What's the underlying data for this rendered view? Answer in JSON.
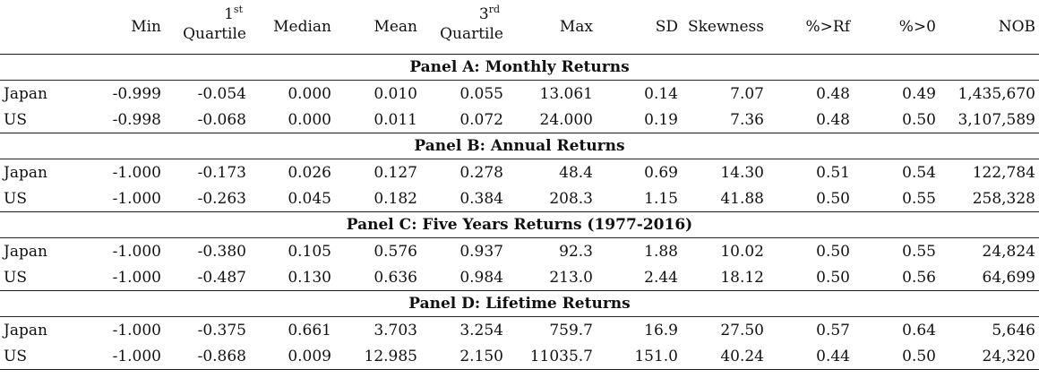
{
  "header": {
    "columns": [
      {
        "label": "Min"
      },
      {
        "sup_base": "1",
        "sup": "st",
        "label": "Quartile"
      },
      {
        "label": "Median"
      },
      {
        "label": "Mean"
      },
      {
        "sup_base": "3",
        "sup": "rd",
        "label": "Quartile"
      },
      {
        "label": "Max"
      },
      {
        "label": "SD"
      },
      {
        "label": "Skewness"
      },
      {
        "label": "%>Rf"
      },
      {
        "label": "%>0"
      },
      {
        "label": "NOB"
      }
    ]
  },
  "panels": [
    {
      "title": "Panel A: Monthly Returns",
      "rows": [
        {
          "name": "Japan",
          "values": [
            "-0.999",
            "-0.054",
            "0.000",
            "0.010",
            "0.055",
            "13.061",
            "0.14",
            "7.07",
            "0.48",
            "0.49",
            "1,435,670"
          ]
        },
        {
          "name": "US",
          "values": [
            "-0.998",
            "-0.068",
            "0.000",
            "0.011",
            "0.072",
            "24.000",
            "0.19",
            "7.36",
            "0.48",
            "0.50",
            "3,107,589"
          ]
        }
      ]
    },
    {
      "title": "Panel B: Annual Returns",
      "rows": [
        {
          "name": "Japan",
          "values": [
            "-1.000",
            "-0.173",
            "0.026",
            "0.127",
            "0.278",
            "48.4",
            "0.69",
            "14.30",
            "0.51",
            "0.54",
            "122,784"
          ]
        },
        {
          "name": "US",
          "values": [
            "-1.000",
            "-0.263",
            "0.045",
            "0.182",
            "0.384",
            "208.3",
            "1.15",
            "41.88",
            "0.50",
            "0.55",
            "258,328"
          ]
        }
      ]
    },
    {
      "title": "Panel C: Five Years Returns (1977-2016)",
      "rows": [
        {
          "name": "Japan",
          "values": [
            "-1.000",
            "-0.380",
            "0.105",
            "0.576",
            "0.937",
            "92.3",
            "1.88",
            "10.02",
            "0.50",
            "0.55",
            "24,824"
          ]
        },
        {
          "name": "US",
          "values": [
            "-1.000",
            "-0.487",
            "0.130",
            "0.636",
            "0.984",
            "213.0",
            "2.44",
            "18.12",
            "0.50",
            "0.56",
            "64,699"
          ]
        }
      ]
    },
    {
      "title": "Panel D: Lifetime Returns",
      "rows": [
        {
          "name": "Japan",
          "values": [
            "-1.000",
            "-0.375",
            "0.661",
            "3.703",
            "3.254",
            "759.7",
            "16.9",
            "27.50",
            "0.57",
            "0.64",
            "5,646"
          ]
        },
        {
          "name": "US",
          "values": [
            "-1.000",
            "-0.868",
            "0.009",
            "12.985",
            "2.150",
            "11035.7",
            "151.0",
            "40.24",
            "0.44",
            "0.50",
            "24,320"
          ]
        }
      ]
    }
  ]
}
